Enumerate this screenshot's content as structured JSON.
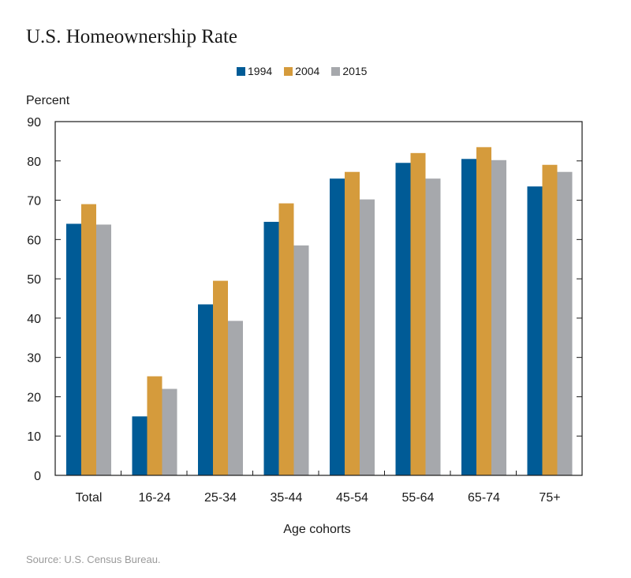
{
  "chart_data": {
    "type": "bar",
    "title": "U.S. Homeownership Rate",
    "xlabel": "Age cohorts",
    "ylabel": "Percent",
    "ylim": [
      0,
      90
    ],
    "yticks": [
      0,
      10,
      20,
      30,
      40,
      50,
      60,
      70,
      80,
      90
    ],
    "grid": false,
    "legend_position": "top-center",
    "categories": [
      "Total",
      "16-24",
      "25-34",
      "35-44",
      "45-54",
      "55-64",
      "65-74",
      "75+"
    ],
    "series": [
      {
        "name": "1994",
        "color": "#005b96",
        "values": [
          64,
          15,
          43.5,
          64.5,
          75.5,
          79.5,
          80.5,
          73.5
        ]
      },
      {
        "name": "2004",
        "color": "#d59b3c",
        "values": [
          69,
          25.2,
          49.5,
          69.2,
          77.2,
          82,
          83.5,
          79
        ]
      },
      {
        "name": "2015",
        "color": "#a6a8ac",
        "values": [
          63.8,
          22,
          39.3,
          58.5,
          70.2,
          75.5,
          80.2,
          77.2
        ]
      }
    ],
    "source": "Source: U.S. Census Bureau."
  }
}
